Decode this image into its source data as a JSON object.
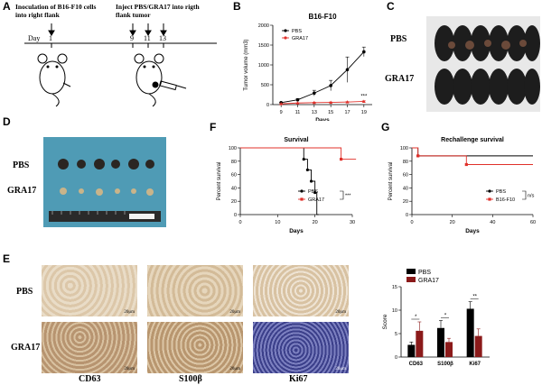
{
  "panels": {
    "A": "A",
    "B": "B",
    "C": "C",
    "D": "D",
    "E": "E",
    "F": "F",
    "G": "G"
  },
  "panelA": {
    "inoc_text": "Inoculation of B16-F10 cells into right flank",
    "inject_text": "Inject PBS/GRA17 into rigth flank tumor",
    "day_label": "Day",
    "days": [
      "1",
      "9",
      "11",
      "13"
    ]
  },
  "panelC": {
    "pbs": "PBS",
    "gra17": "GRA17"
  },
  "panelD": {
    "pbs": "PBS",
    "gra17": "GRA17"
  },
  "panelE": {
    "rows": [
      "PBS",
      "GRA17"
    ],
    "cols": [
      "CD63",
      "S100β",
      "Ki67"
    ],
    "scale_bar": "20μm"
  },
  "colors": {
    "pbs": "#000000",
    "gra17": "#e0302a",
    "gra17_bar": "#8b1a1a"
  },
  "chart_data": [
    {
      "panel": "B",
      "type": "line",
      "title": "B16-F10",
      "xlabel": "Days",
      "ylabel": "Tumor volume (mm3)",
      "x": [
        9,
        11,
        13,
        15,
        17,
        19
      ],
      "ylim": [
        0,
        2000
      ],
      "yticks": [
        0,
        500,
        1000,
        1500,
        2000
      ],
      "series": [
        {
          "name": "PBS",
          "values": [
            50,
            120,
            290,
            480,
            880,
            1330
          ],
          "err": [
            10,
            30,
            70,
            130,
            320,
            120
          ]
        },
        {
          "name": "GRA17",
          "values": [
            20,
            40,
            50,
            55,
            65,
            80
          ],
          "err": [
            5,
            5,
            8,
            10,
            10,
            15
          ]
        }
      ],
      "annotation": "***"
    },
    {
      "panel": "F",
      "type": "line",
      "title": "Survival",
      "xlabel": "Days",
      "ylabel": "Percent survival",
      "xlim": [
        0,
        30
      ],
      "xticks": [
        0,
        10,
        20,
        30
      ],
      "ylim": [
        0,
        100
      ],
      "yticks": [
        0,
        20,
        40,
        60,
        80,
        100
      ],
      "series": [
        {
          "name": "PBS",
          "points": [
            [
              0,
              100
            ],
            [
              17,
              100
            ],
            [
              17,
              83
            ],
            [
              18,
              83
            ],
            [
              18,
              67
            ],
            [
              19,
              67
            ],
            [
              19,
              50
            ],
            [
              20,
              50
            ],
            [
              20,
              33
            ],
            [
              20.5,
              33
            ],
            [
              20.5,
              0
            ],
            [
              21,
              0
            ]
          ]
        },
        {
          "name": "GRA17",
          "points": [
            [
              0,
              100
            ],
            [
              27,
              100
            ],
            [
              27,
              83
            ],
            [
              31,
              83
            ]
          ]
        }
      ],
      "annotation": "***"
    },
    {
      "panel": "G",
      "type": "line",
      "title": "Rechallenge survival",
      "xlabel": "Days",
      "ylabel": "Percent survival",
      "xlim": [
        0,
        60
      ],
      "xticks": [
        0,
        20,
        40,
        60
      ],
      "ylim": [
        0,
        100
      ],
      "yticks": [
        0,
        20,
        40,
        60,
        80,
        100
      ],
      "series": [
        {
          "name": "PBS",
          "points": [
            [
              0,
              100
            ],
            [
              3,
              100
            ],
            [
              3,
              88
            ],
            [
              60,
              88
            ]
          ]
        },
        {
          "name": "B16-F10",
          "points": [
            [
              0,
              100
            ],
            [
              3,
              100
            ],
            [
              3,
              88
            ],
            [
              27,
              88
            ],
            [
              27,
              75
            ],
            [
              60,
              75
            ]
          ]
        }
      ],
      "annotation": "n/s"
    },
    {
      "panel": "E",
      "type": "bar",
      "categories": [
        "CD63",
        "S100β",
        "Ki67"
      ],
      "ylabel": "Score",
      "ylim": [
        0,
        15
      ],
      "yticks": [
        0,
        5,
        10,
        15
      ],
      "series": [
        {
          "name": "PBS",
          "values": [
            2.6,
            6.2,
            10.3
          ],
          "err": [
            0.6,
            1.6,
            1.5
          ]
        },
        {
          "name": "GRA17",
          "values": [
            5.6,
            3.2,
            4.5
          ],
          "err": [
            1.9,
            0.8,
            1.5
          ]
        }
      ],
      "annotations": [
        "*",
        "*",
        "**"
      ]
    }
  ]
}
